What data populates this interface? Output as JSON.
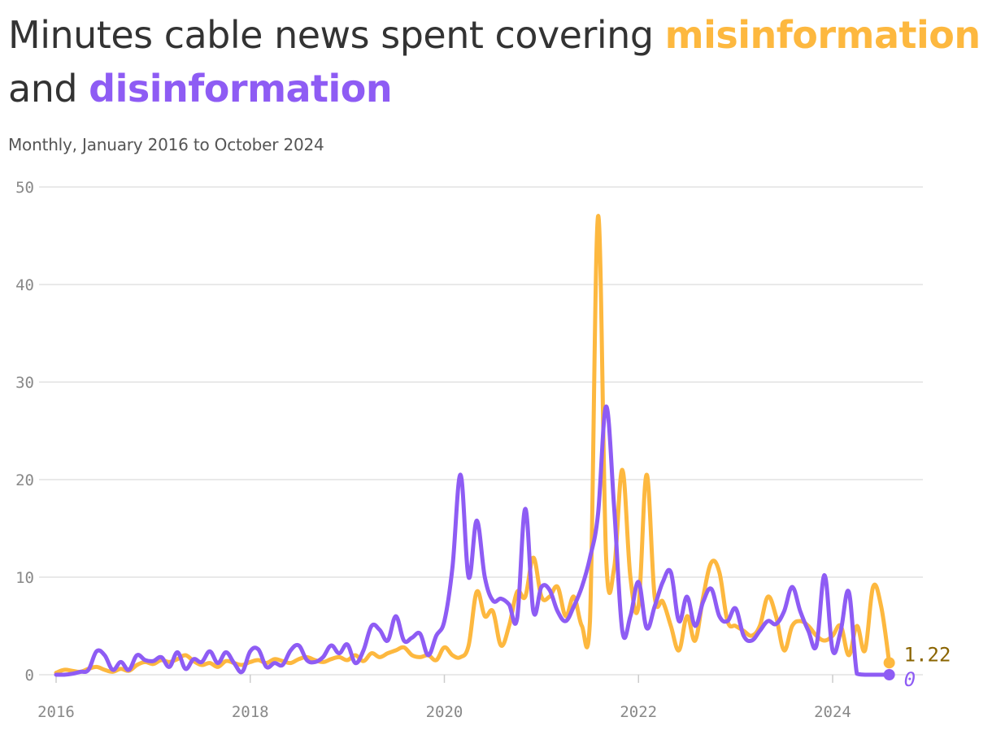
{
  "title": {
    "part1": "Minutes cable news spent covering",
    "term1": "misinformation",
    "part2": "and",
    "term2": "disinformation"
  },
  "subtitle": "Monthly, January 2016 to October 2024",
  "colors": {
    "misinformation": "#FDB83F",
    "disinformation": "#8E5CF4",
    "misinformation_label": "#8A6400",
    "grid": "#E2E2E2",
    "tick": "#888888",
    "title": "#333333"
  },
  "chart_data": {
    "type": "line",
    "x_start": "2016-01",
    "x_end": "2024-10",
    "x_unit": "month",
    "x_ticks": [
      "2016",
      "2018",
      "2020",
      "2022",
      "2024"
    ],
    "y_ticks": [
      "0",
      "10",
      "20",
      "30",
      "40",
      "50"
    ],
    "ylim": [
      0,
      50
    ],
    "grid": "horizontal",
    "series": [
      {
        "name": "misinformation",
        "end_label": "1.22",
        "values": [
          0.2,
          0.5,
          0.4,
          0.3,
          0.6,
          0.8,
          0.5,
          0.3,
          0.6,
          0.4,
          1.0,
          1.3,
          1.1,
          1.5,
          1.3,
          1.6,
          2.0,
          1.4,
          1.0,
          1.2,
          0.8,
          1.4,
          1.2,
          1.0,
          1.3,
          1.5,
          1.2,
          1.6,
          1.4,
          1.2,
          1.6,
          1.8,
          1.5,
          1.3,
          1.6,
          1.8,
          1.5,
          2.0,
          1.4,
          2.2,
          1.8,
          2.2,
          2.5,
          2.8,
          2.0,
          1.8,
          2.0,
          1.5,
          2.8,
          2.0,
          1.8,
          3.0,
          8.5,
          6.0,
          6.5,
          3.0,
          5.0,
          8.5,
          8.0,
          12.0,
          8.0,
          8.0,
          9.0,
          6.0,
          8.0,
          5.0,
          5.5,
          47.0,
          12.0,
          11.0,
          21.0,
          10.0,
          7.0,
          20.5,
          8.0,
          7.5,
          5.0,
          2.5,
          6.0,
          3.5,
          8.0,
          11.5,
          10.5,
          5.5,
          5.0,
          4.5,
          4.0,
          5.0,
          8.0,
          6.0,
          2.5,
          5.0,
          5.5,
          5.0,
          4.0,
          3.5,
          4.0,
          5.0,
          2.0,
          5.0,
          2.5,
          9.0,
          7.0,
          1.22
        ]
      },
      {
        "name": "disinformation",
        "end_label": "0",
        "values": [
          0.0,
          0.0,
          0.1,
          0.3,
          0.5,
          2.4,
          2.0,
          0.5,
          1.3,
          0.5,
          2.0,
          1.5,
          1.4,
          1.8,
          0.8,
          2.3,
          0.6,
          1.6,
          1.3,
          2.4,
          1.2,
          2.3,
          1.2,
          0.3,
          2.4,
          2.6,
          0.8,
          1.2,
          1.0,
          2.5,
          3.0,
          1.5,
          1.3,
          1.8,
          3.0,
          2.2,
          3.1,
          1.2,
          2.5,
          5.0,
          4.6,
          3.5,
          6.0,
          3.5,
          3.8,
          4.2,
          2.0,
          4.0,
          5.5,
          11.0,
          20.5,
          10.0,
          15.8,
          10.0,
          7.6,
          7.8,
          7.2,
          5.8,
          17.0,
          6.5,
          9.0,
          8.7,
          6.5,
          5.5,
          7.0,
          9.0,
          12.0,
          16.5,
          27.5,
          17.0,
          4.5,
          6.0,
          9.5,
          4.8,
          7.0,
          9.5,
          10.5,
          5.5,
          8.0,
          5.0,
          7.5,
          8.8,
          6.0,
          5.5,
          6.8,
          4.0,
          3.5,
          4.5,
          5.5,
          5.2,
          6.5,
          9.0,
          6.5,
          4.5,
          3.0,
          10.2,
          2.5,
          4.5,
          8.5,
          0.1,
          0.0,
          0.0,
          0.0,
          0.0
        ]
      }
    ]
  }
}
